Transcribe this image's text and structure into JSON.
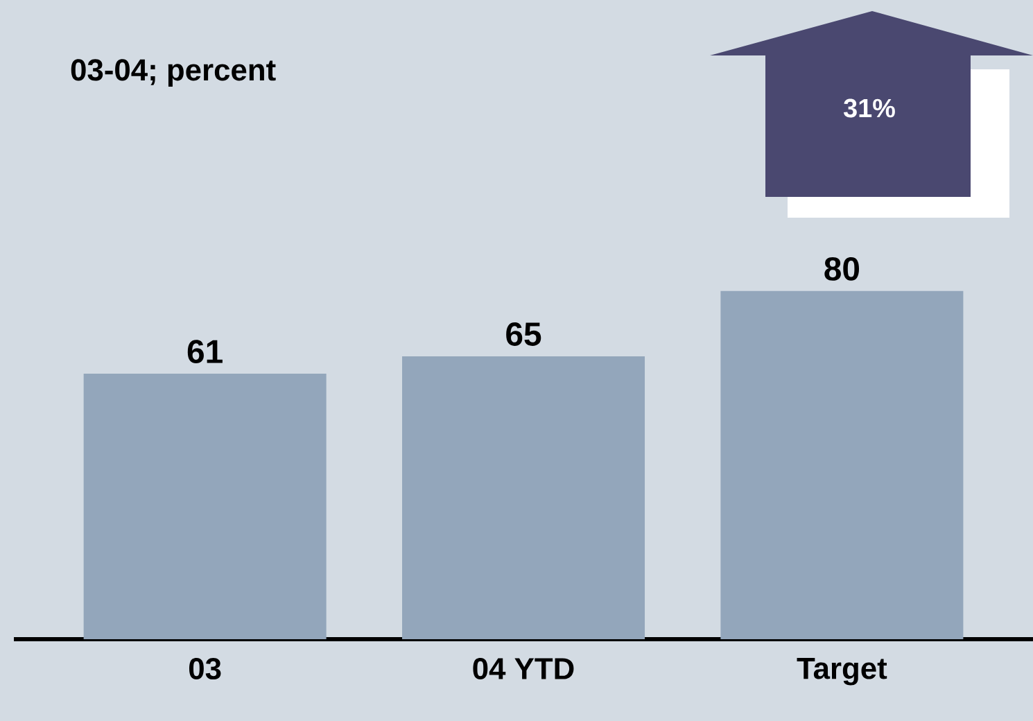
{
  "chart_data": {
    "type": "bar",
    "title": "03-04; percent",
    "categories": [
      "03",
      "04 YTD",
      "Target"
    ],
    "values": [
      61,
      65,
      80
    ],
    "color": "#93a6bb",
    "data_labels": true,
    "annotations": [
      "31%"
    ]
  }
}
